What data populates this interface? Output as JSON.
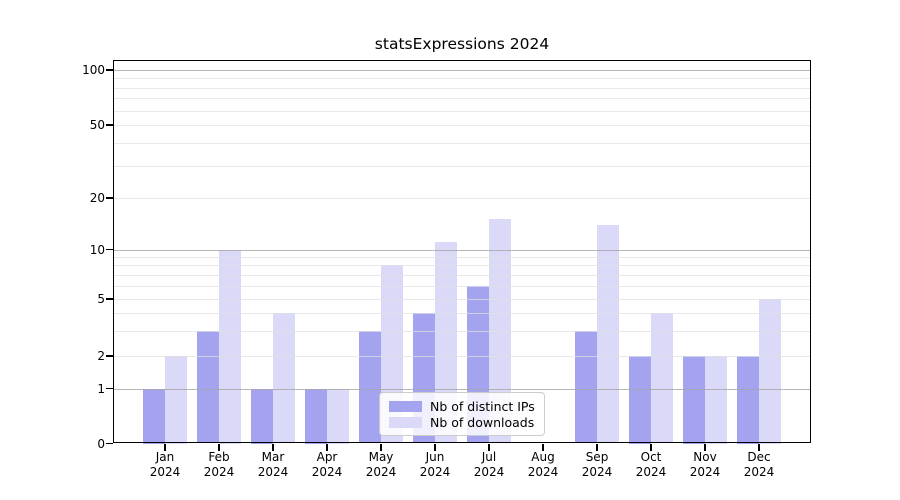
{
  "chart_data": {
    "type": "bar",
    "title": "statsExpressions 2024",
    "months": [
      "Jan",
      "Feb",
      "Mar",
      "Apr",
      "May",
      "Jun",
      "Jul",
      "Aug",
      "Sep",
      "Oct",
      "Nov",
      "Dec"
    ],
    "year": "2024",
    "series": [
      {
        "name": "Nb of distinct IPs",
        "color": "#a3a3ef",
        "values": [
          1,
          3,
          1,
          1,
          3,
          4,
          6,
          0,
          3,
          2,
          2,
          2
        ]
      },
      {
        "name": "Nb of downloads",
        "color": "#dadaf8",
        "values": [
          2,
          10,
          4,
          1,
          8,
          11,
          15,
          0,
          14,
          4,
          2,
          5
        ]
      }
    ],
    "y_ticks": [
      0,
      1,
      2,
      5,
      10,
      20,
      50,
      100
    ],
    "y_scale": "symlog",
    "ylim": [
      0,
      115
    ],
    "grid": "horizontal",
    "legend_position": "lower center",
    "background_color": "#ffffff",
    "text_color": "#000000"
  }
}
